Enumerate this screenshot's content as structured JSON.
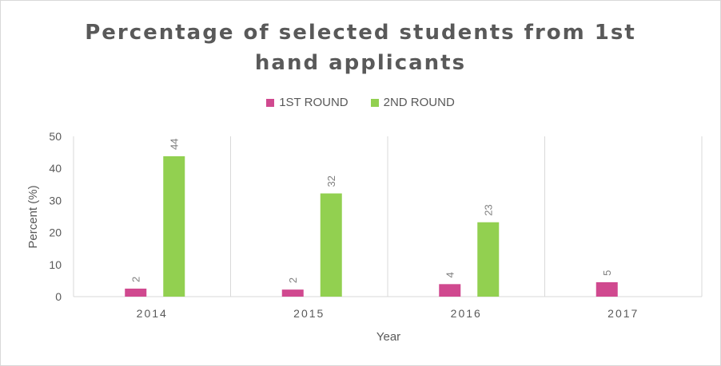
{
  "chart_data": {
    "type": "bar",
    "title_lines": [
      "Percentage of selected students from 1st",
      "hand applicants"
    ],
    "categories": [
      "2014",
      "2015",
      "2016",
      "2017"
    ],
    "series": [
      {
        "name": "1ST ROUND",
        "values": [
          2.5,
          2.2,
          3.9,
          4.5
        ],
        "labels": [
          "2",
          "2",
          "4",
          "5"
        ],
        "color": "#d0498f"
      },
      {
        "name": "2ND ROUND",
        "values": [
          43.8,
          32.2,
          23.2,
          null
        ],
        "labels": [
          "44",
          "32",
          "23",
          ""
        ],
        "color": "#92d050"
      }
    ],
    "xlabel": "Year",
    "ylabel": "Percent (%)",
    "ylim": [
      0,
      50
    ],
    "yticks": [
      0,
      10,
      20,
      30,
      40,
      50
    ],
    "grid": "vertical separators between categories",
    "legend_position": "top-center"
  }
}
